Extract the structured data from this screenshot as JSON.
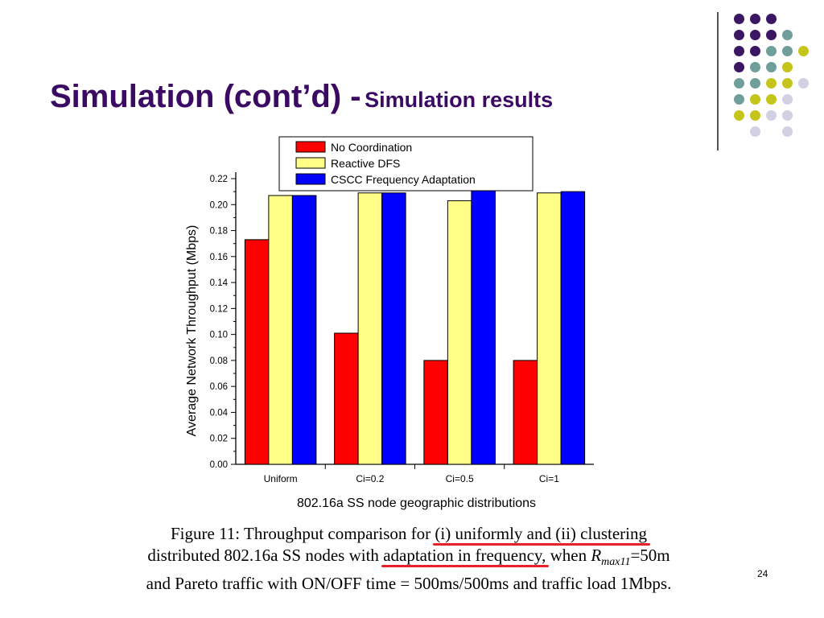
{
  "slide": {
    "title_main": "Simulation (cont’d) -",
    "title_sub": "Simulation results",
    "page_number": "24"
  },
  "decoration": {
    "dot_colors": {
      "purple": "#3b1663",
      "teal": "#6f9e9b",
      "olive": "#c4c41a",
      "lavender": "#d2d0e2"
    }
  },
  "chart_data": {
    "type": "bar",
    "title": "",
    "xlabel": "802.16a SS node geographic distributions",
    "ylabel": "Average Network Throughput (Mbps)",
    "categories": [
      "Uniform",
      "Ci=0.2",
      "Ci=0.5",
      "Ci=1"
    ],
    "ylim": [
      0,
      0.22
    ],
    "yticks": [
      "0.00",
      "0.02",
      "0.04",
      "0.06",
      "0.08",
      "0.10",
      "0.12",
      "0.14",
      "0.16",
      "0.18",
      "0.20",
      "0.22"
    ],
    "grid": false,
    "legend_position": "top",
    "series": [
      {
        "name": "No Coordination",
        "color": "#ff0000",
        "values": [
          0.173,
          0.101,
          0.08,
          0.08
        ]
      },
      {
        "name": "Reactive DFS",
        "color": "#ffff88",
        "values": [
          0.207,
          0.209,
          0.203,
          0.209
        ]
      },
      {
        "name": "CSCC Frequency Adaptation",
        "color": "#0000ff",
        "values": [
          0.207,
          0.209,
          0.211,
          0.21
        ]
      }
    ]
  },
  "caption": {
    "line1_a": "Figure 11: Throughput comparison for",
    "line1_u": "(i) uniformly and (ii) clustering",
    "line2_a": "distributed 802.16a SS nodes with",
    "line2_u": "adaptation in frequency,",
    "line2_b": "when",
    "line2_var": "R",
    "line2_sub": "max11",
    "line2_c": "=50m",
    "line3": "and Pareto traffic with ON/OFF time = 500ms/500ms and traffic load 1Mbps."
  }
}
